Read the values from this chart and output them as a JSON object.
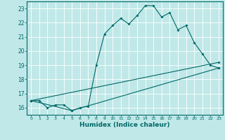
{
  "xlabel": "Humidex (Indice chaleur)",
  "bg_color": "#c0e8e8",
  "line_color": "#006868",
  "grid_color": "#ffffff",
  "xlim": [
    -0.5,
    23.5
  ],
  "ylim": [
    15.5,
    23.5
  ],
  "xticks": [
    0,
    1,
    2,
    3,
    4,
    5,
    6,
    7,
    8,
    9,
    10,
    11,
    12,
    13,
    14,
    15,
    16,
    17,
    18,
    19,
    20,
    21,
    22,
    23
  ],
  "yticks": [
    16,
    17,
    18,
    19,
    20,
    21,
    22,
    23
  ],
  "line1": [
    [
      0,
      16.5
    ],
    [
      1,
      16.5
    ],
    [
      2,
      16.0
    ],
    [
      3,
      16.2
    ],
    [
      4,
      16.2
    ],
    [
      5,
      15.8
    ],
    [
      6,
      16.0
    ],
    [
      7,
      16.1
    ],
    [
      8,
      19.0
    ],
    [
      9,
      21.2
    ],
    [
      10,
      21.8
    ],
    [
      11,
      22.3
    ],
    [
      12,
      21.9
    ],
    [
      13,
      22.5
    ],
    [
      14,
      23.2
    ],
    [
      15,
      23.2
    ],
    [
      16,
      22.4
    ],
    [
      17,
      22.7
    ],
    [
      18,
      21.5
    ],
    [
      19,
      21.8
    ],
    [
      20,
      20.6
    ],
    [
      21,
      19.8
    ],
    [
      22,
      19.0
    ],
    [
      23,
      18.8
    ]
  ],
  "line2": [
    [
      0,
      16.5
    ],
    [
      5,
      15.8
    ],
    [
      23,
      18.8
    ]
  ],
  "line3": [
    [
      0,
      16.5
    ],
    [
      23,
      19.2
    ]
  ]
}
